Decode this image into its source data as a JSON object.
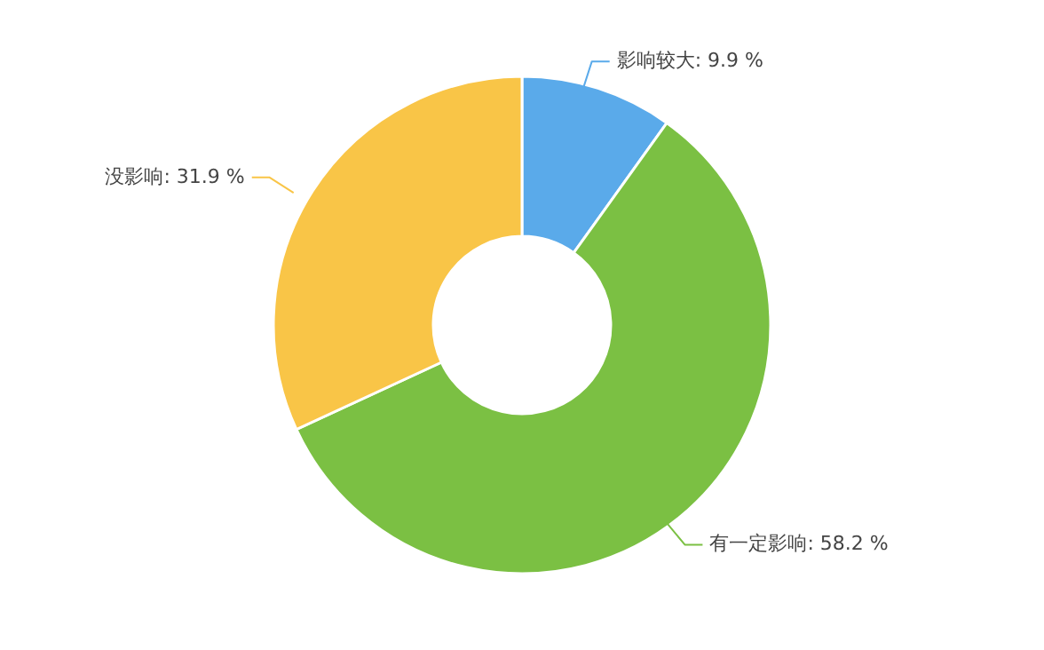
{
  "chart_data": {
    "type": "donut",
    "categories": [
      "影响较大",
      "有一定影响",
      "没影响"
    ],
    "values": [
      9.9,
      58.2,
      31.9
    ],
    "colors": [
      "#5aaaea",
      "#7bc043",
      "#f9c547"
    ],
    "value_labels": [
      "9.9 %",
      "58.2 %",
      "31.9 %"
    ]
  }
}
